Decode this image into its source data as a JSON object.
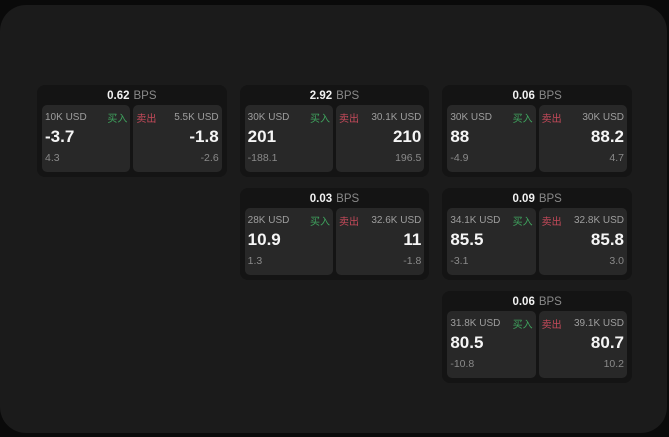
{
  "labels": {
    "bps_unit": "BPS",
    "buy": "买入",
    "sell": "卖出"
  },
  "cards": [
    {
      "bps": "0.62",
      "col": 1,
      "row": 1,
      "buy": {
        "amount": "10K USD",
        "big": "-3.7",
        "small": "4.3"
      },
      "sell": {
        "amount": "5.5K USD",
        "big": "-1.8",
        "small": "-2.6"
      }
    },
    {
      "bps": "2.92",
      "col": 2,
      "row": 1,
      "buy": {
        "amount": "30K USD",
        "big": "201",
        "small": "-188.1"
      },
      "sell": {
        "amount": "30.1K USD",
        "big": "210",
        "small": "196.5"
      }
    },
    {
      "bps": "0.06",
      "col": 3,
      "row": 1,
      "buy": {
        "amount": "30K USD",
        "big": "88",
        "small": "-4.9"
      },
      "sell": {
        "amount": "30K USD",
        "big": "88.2",
        "small": "4.7"
      }
    },
    {
      "bps": "0.03",
      "col": 2,
      "row": 2,
      "buy": {
        "amount": "28K USD",
        "big": "10.9",
        "small": "1.3"
      },
      "sell": {
        "amount": "32.6K USD",
        "big": "11",
        "small": "-1.8"
      }
    },
    {
      "bps": "0.09",
      "col": 3,
      "row": 2,
      "buy": {
        "amount": "34.1K USD",
        "big": "85.5",
        "small": "-3.1"
      },
      "sell": {
        "amount": "32.8K USD",
        "big": "85.8",
        "small": "3.0"
      }
    },
    {
      "bps": "0.06",
      "col": 3,
      "row": 3,
      "buy": {
        "amount": "31.8K USD",
        "big": "80.5",
        "small": "-10.8"
      },
      "sell": {
        "amount": "39.1K USD",
        "big": "80.7",
        "small": "10.2"
      }
    }
  ]
}
